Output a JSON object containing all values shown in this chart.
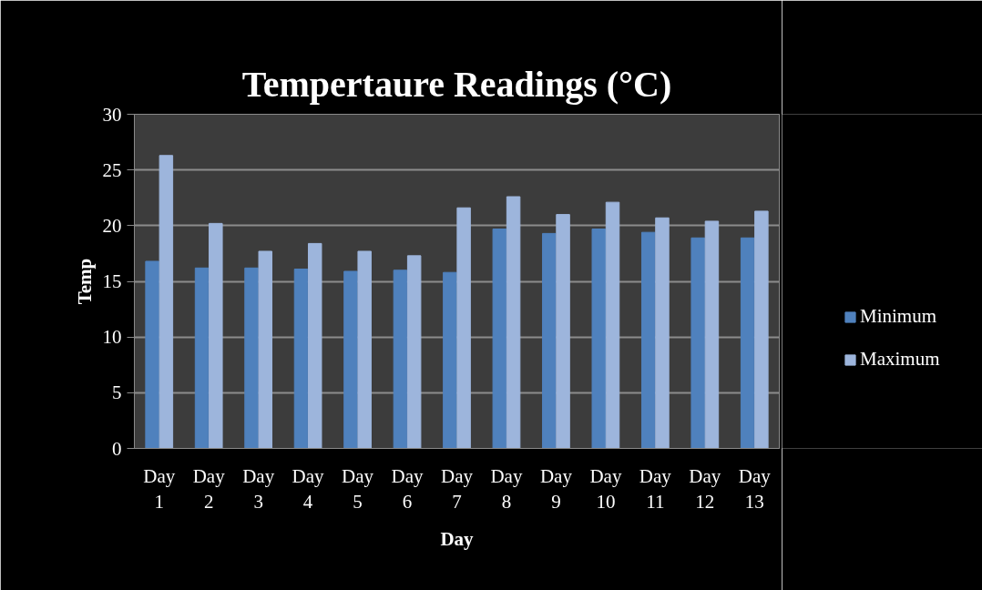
{
  "chart_data": {
    "type": "bar",
    "title": "Tempertaure Readings (°C)",
    "xlabel": "Day",
    "ylabel": "Temp",
    "categories": [
      "Day 1",
      "Day 2",
      "Day 3",
      "Day 4",
      "Day 5",
      "Day 6",
      "Day 7",
      "Day 8",
      "Day 9",
      "Day 10",
      "Day 11",
      "Day 12",
      "Day 13"
    ],
    "series": [
      {
        "name": "Minimum",
        "color": "#4f81bd",
        "values": [
          16.8,
          16.2,
          16.2,
          16.1,
          15.9,
          16.0,
          15.8,
          19.7,
          19.3,
          19.7,
          19.4,
          18.9,
          18.9
        ]
      },
      {
        "name": "Maximum",
        "color": "#9db5dc",
        "values": [
          26.3,
          20.2,
          17.7,
          18.4,
          17.7,
          17.3,
          21.6,
          22.6,
          21.0,
          22.1,
          20.7,
          20.4,
          21.3
        ]
      }
    ],
    "ylim": [
      0,
      30
    ],
    "yticks": [
      0,
      5,
      10,
      15,
      20,
      25,
      30
    ],
    "grid": "y",
    "legend": "right"
  }
}
